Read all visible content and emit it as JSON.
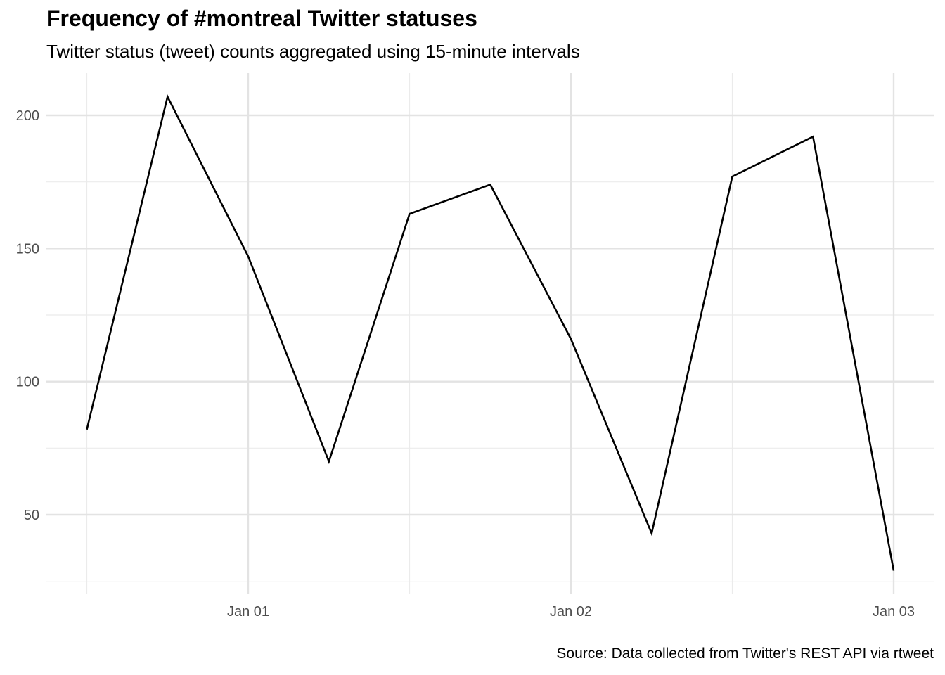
{
  "chart_data": {
    "type": "line",
    "title": "Frequency of #montreal Twitter statuses",
    "subtitle": "Twitter status (tweet) counts aggregated using 15-minute intervals",
    "caption": "Source: Data collected from Twitter's REST API via rtweet",
    "xlabel": "",
    "ylabel": "",
    "x_ticks": [
      {
        "label": "Jan 01",
        "value": 1.0
      },
      {
        "label": "Jan 02",
        "value": 2.0
      },
      {
        "label": "Jan 03",
        "value": 3.0
      }
    ],
    "y_ticks": [
      50,
      100,
      150,
      200
    ],
    "ylim": [
      22,
      216
    ],
    "xlim": [
      0.37,
      3.13
    ],
    "grid": true,
    "series": [
      {
        "color": "#000000",
        "points": [
          {
            "x": 0.5,
            "y": 82
          },
          {
            "x": 0.75,
            "y": 207
          },
          {
            "x": 1.0,
            "y": 147
          },
          {
            "x": 1.25,
            "y": 70
          },
          {
            "x": 1.5,
            "y": 163
          },
          {
            "x": 1.75,
            "y": 174
          },
          {
            "x": 2.0,
            "y": 116
          },
          {
            "x": 2.25,
            "y": 43
          },
          {
            "x": 2.5,
            "y": 177
          },
          {
            "x": 2.75,
            "y": 192
          },
          {
            "x": 3.0,
            "y": 29
          }
        ]
      }
    ]
  }
}
